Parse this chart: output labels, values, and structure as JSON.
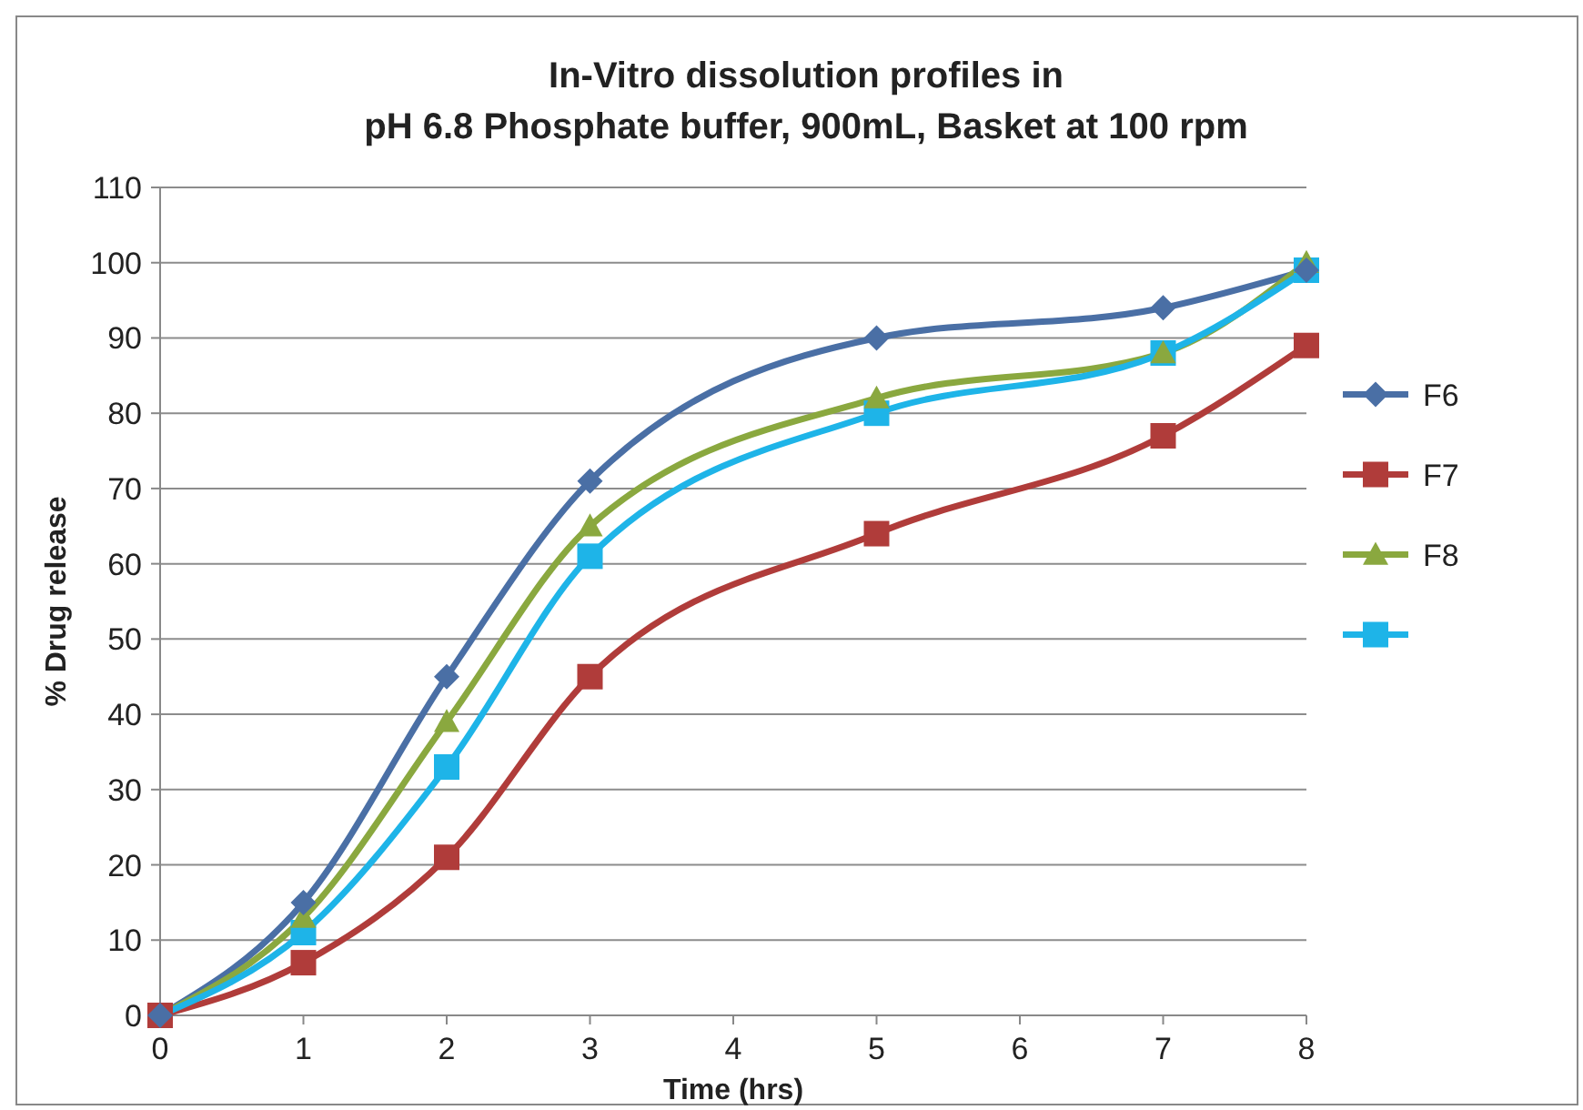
{
  "chart_data": {
    "type": "line",
    "title": "In-Vitro dissolution profiles in\npH 6.8 Phosphate buffer, 900mL, Basket at 100 rpm",
    "xlabel": "Time (hrs)",
    "ylabel": "% Drug release",
    "x": [
      0,
      1,
      2,
      3,
      5,
      7,
      8
    ],
    "xlim": [
      0,
      8
    ],
    "xticks": [
      0,
      1,
      2,
      3,
      4,
      5,
      6,
      7,
      8
    ],
    "ylim": [
      0,
      110
    ],
    "yticks": [
      0,
      10,
      20,
      30,
      40,
      50,
      60,
      70,
      80,
      90,
      100,
      110
    ],
    "grid": "y",
    "legend": "right",
    "line_style": "solid",
    "series": [
      {
        "name": "F6",
        "color": "#4a6fa5",
        "marker": "diamond",
        "values": [
          0,
          15,
          45,
          71,
          90,
          94,
          99
        ]
      },
      {
        "name": "F7",
        "color": "#b03c3a",
        "marker": "square",
        "values": [
          0,
          7,
          21,
          45,
          64,
          77,
          89
        ]
      },
      {
        "name": "F8",
        "color": "#8aa83f",
        "marker": "triangle",
        "values": [
          0,
          13,
          39,
          65,
          82,
          88,
          100
        ]
      },
      {
        "color": "#1eb4e8",
        "marker": "square",
        "values": [
          0,
          11,
          33,
          61,
          80,
          88,
          99
        ]
      }
    ]
  }
}
